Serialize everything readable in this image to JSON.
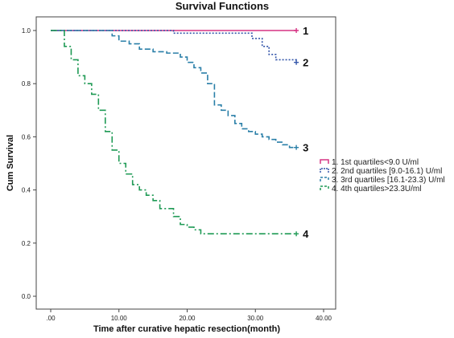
{
  "chart_data": {
    "type": "line",
    "title": "Survival Functions",
    "xlabel": "Time after curative hepatic resection(month)",
    "ylabel": "Cum Survival",
    "xlim": [
      0,
      40
    ],
    "ylim": [
      0,
      1
    ],
    "x_ticks": [
      ".00",
      "10.00",
      "20.00",
      "30.00",
      "40.00"
    ],
    "x_tick_values": [
      0,
      10,
      20,
      30,
      40
    ],
    "y_ticks": [
      "0.0",
      "0.2",
      "0.4",
      "0.6",
      "0.8",
      "1.0"
    ],
    "y_tick_values": [
      0,
      0.2,
      0.4,
      0.6,
      0.8,
      1.0
    ],
    "grid": false,
    "legend_position": "right",
    "series": [
      {
        "name": "1. 1st quartiles<9.0 U/ml",
        "end_label": "1",
        "color": "#d63384",
        "dash": "solid",
        "x": [
          0,
          36
        ],
        "y": [
          1.0,
          1.0
        ]
      },
      {
        "name": "2. 2nd quartiles [9.0-16.1) U/ml",
        "end_label": "2",
        "color": "#3355aa",
        "dash": "dotted",
        "x": [
          0,
          18,
          29.5,
          31,
          32,
          33,
          36
        ],
        "y": [
          1.0,
          0.99,
          0.97,
          0.94,
          0.91,
          0.89,
          0.88
        ]
      },
      {
        "name": "3. 3rd quartiles [16.1-23.3) U/ml",
        "end_label": "3",
        "color": "#2a7fa8",
        "dash": "dashed",
        "x": [
          0,
          9,
          10,
          11.5,
          13,
          15,
          17,
          19,
          20,
          21,
          22,
          23,
          24,
          25,
          26,
          27,
          28,
          29,
          30,
          31,
          32,
          33,
          34,
          35,
          36
        ],
        "y": [
          1.0,
          0.98,
          0.96,
          0.95,
          0.93,
          0.92,
          0.915,
          0.9,
          0.88,
          0.86,
          0.84,
          0.8,
          0.72,
          0.7,
          0.68,
          0.65,
          0.63,
          0.62,
          0.61,
          0.6,
          0.59,
          0.58,
          0.57,
          0.56,
          0.56
        ]
      },
      {
        "name": "4. 4th quartiles>23.3U/ml",
        "end_label": "4",
        "color": "#1f9a55",
        "dash": "dashdot",
        "x": [
          0,
          2,
          3,
          4,
          5,
          6,
          7,
          8,
          9,
          10,
          11,
          12,
          13,
          14,
          15,
          16,
          18,
          19,
          20,
          21,
          22,
          36
        ],
        "y": [
          1.0,
          0.94,
          0.89,
          0.83,
          0.8,
          0.76,
          0.7,
          0.62,
          0.55,
          0.5,
          0.46,
          0.42,
          0.4,
          0.38,
          0.36,
          0.33,
          0.3,
          0.27,
          0.26,
          0.25,
          0.235,
          0.235
        ]
      }
    ]
  }
}
